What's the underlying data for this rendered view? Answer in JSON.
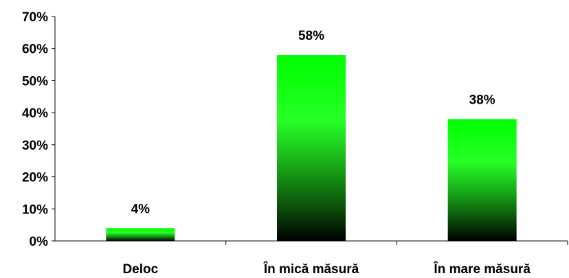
{
  "chart_data": {
    "type": "bar",
    "categories": [
      "Deloc",
      "În mică măsură",
      "În mare măsură"
    ],
    "values": [
      4,
      58,
      38
    ],
    "value_labels": [
      "4%",
      "58%",
      "38%"
    ],
    "y_ticks": [
      "0%",
      "10%",
      "20%",
      "30%",
      "40%",
      "50%",
      "60%",
      "70%"
    ],
    "ylim": [
      0,
      70
    ],
    "grid": false,
    "legend": "none",
    "bar_color_top": "#00ff00",
    "bar_color_bottom": "#000000"
  }
}
